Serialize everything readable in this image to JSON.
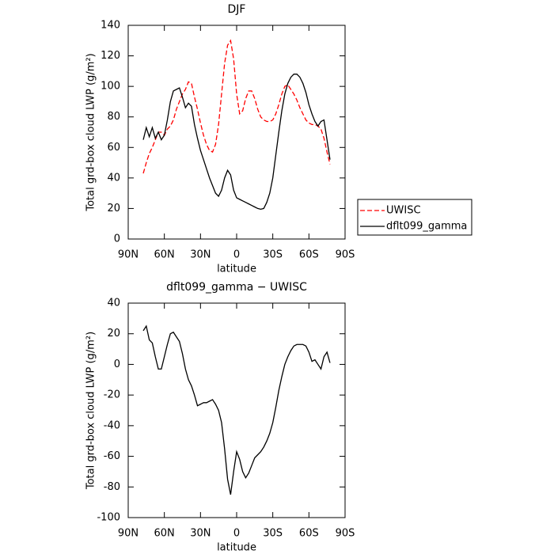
{
  "chart_data": [
    {
      "type": "line",
      "title": "DJF",
      "xlabel": "latitude",
      "ylabel": "Total grd-box cloud LWP (g/m²)",
      "x": [
        77.5,
        75,
        72.5,
        70,
        67.5,
        65,
        62.5,
        60,
        57.5,
        55,
        52.5,
        50,
        47.5,
        45,
        42.5,
        40,
        37.5,
        35,
        32.5,
        30,
        27.5,
        25,
        22.5,
        20,
        17.5,
        15,
        12.5,
        10,
        7.5,
        5,
        2.5,
        0,
        -2.5,
        -5,
        -7.5,
        -10,
        -12.5,
        -15,
        -17.5,
        -20,
        -22.5,
        -25,
        -27.5,
        -30,
        -32.5,
        -35,
        -37.5,
        -40,
        -42.5,
        -45,
        -47.5,
        -50,
        -52.5,
        -55,
        -57.5,
        -60,
        -62.5,
        -65,
        -67.5,
        -70,
        -72.5,
        -75,
        -77.5
      ],
      "xlim": [
        90,
        -90
      ],
      "xticks": [
        {
          "value": 90,
          "label": "90N"
        },
        {
          "value": 60,
          "label": "60N"
        },
        {
          "value": 30,
          "label": "30N"
        },
        0,
        {
          "value": -30,
          "label": "30S"
        },
        {
          "value": -60,
          "label": "60S"
        },
        {
          "value": -90,
          "label": "90S"
        }
      ],
      "ylim": [
        0,
        140
      ],
      "yticks": [
        0,
        20,
        40,
        60,
        80,
        100,
        120,
        140
      ],
      "legend": "right",
      "series": [
        {
          "name": "UWISC",
          "color": "#ff0000",
          "style": "dashed",
          "values": [
            43,
            50,
            56,
            60,
            65,
            70,
            70,
            68,
            72,
            74,
            78,
            85,
            90,
            95,
            98,
            103,
            102,
            93,
            85,
            76,
            68,
            62,
            58,
            57,
            62,
            75,
            95,
            115,
            127,
            130,
            118,
            95,
            82,
            84,
            92,
            97,
            97,
            92,
            85,
            80,
            78,
            77,
            77,
            78,
            82,
            88,
            95,
            100,
            101,
            98,
            95,
            91,
            86,
            82,
            78,
            76,
            75,
            75,
            74,
            72,
            66,
            57,
            49
          ]
        },
        {
          "name": "dflt099_gamma",
          "color": "#000000",
          "style": "solid",
          "values": [
            65,
            73,
            67,
            73,
            66,
            70,
            65,
            68,
            78,
            90,
            97,
            98,
            99,
            93,
            86,
            89,
            87,
            75,
            66,
            58,
            52,
            46,
            40,
            35,
            30,
            28,
            32,
            40,
            45,
            42,
            32,
            27,
            26,
            25,
            24,
            23,
            22,
            21,
            20,
            19.5,
            20,
            24,
            30,
            40,
            55,
            70,
            84,
            95,
            102,
            106,
            108,
            108,
            106,
            102,
            96,
            88,
            82,
            77,
            74,
            77,
            78,
            65,
            52
          ]
        }
      ]
    },
    {
      "type": "line",
      "title": "dflt099_gamma − UWISC",
      "xlabel": "latitude",
      "ylabel": "Total grd-box cloud LWP (g/m²)",
      "x": [
        77.5,
        75,
        72.5,
        70,
        67.5,
        65,
        62.5,
        60,
        57.5,
        55,
        52.5,
        50,
        47.5,
        45,
        42.5,
        40,
        37.5,
        35,
        32.5,
        30,
        27.5,
        25,
        22.5,
        20,
        17.5,
        15,
        12.5,
        10,
        7.5,
        5,
        2.5,
        0,
        -2.5,
        -5,
        -7.5,
        -10,
        -12.5,
        -15,
        -17.5,
        -20,
        -22.5,
        -25,
        -27.5,
        -30,
        -32.5,
        -35,
        -37.5,
        -40,
        -42.5,
        -45,
        -47.5,
        -50,
        -52.5,
        -55,
        -57.5,
        -60,
        -62.5,
        -65,
        -67.5,
        -70,
        -72.5,
        -75,
        -77.5
      ],
      "xlim": [
        90,
        -90
      ],
      "xticks": [
        {
          "value": 90,
          "label": "90N"
        },
        {
          "value": 60,
          "label": "60N"
        },
        {
          "value": 30,
          "label": "30N"
        },
        0,
        {
          "value": -30,
          "label": "30S"
        },
        {
          "value": -60,
          "label": "60S"
        },
        {
          "value": -90,
          "label": "90S"
        }
      ],
      "ylim": [
        -100,
        40
      ],
      "yticks": [
        -100,
        -80,
        -60,
        -40,
        -20,
        0,
        20,
        40
      ],
      "series": [
        {
          "color": "#000000",
          "style": "solid",
          "values": [
            22,
            25,
            16,
            14,
            5,
            -3,
            -3,
            5,
            13,
            20,
            21,
            18,
            15,
            7,
            -3,
            -10,
            -14,
            -20,
            -27,
            -26,
            -25,
            -25,
            -24,
            -23,
            -26,
            -30,
            -38,
            -55,
            -75,
            -85,
            -70,
            -57,
            -62,
            -70,
            -74,
            -71,
            -66,
            -61,
            -59,
            -57,
            -54,
            -50,
            -45,
            -38,
            -28,
            -17,
            -8,
            0,
            5,
            9,
            12,
            13,
            13,
            13,
            12,
            8,
            2,
            3,
            0,
            -3,
            5,
            8,
            1
          ]
        }
      ]
    }
  ]
}
